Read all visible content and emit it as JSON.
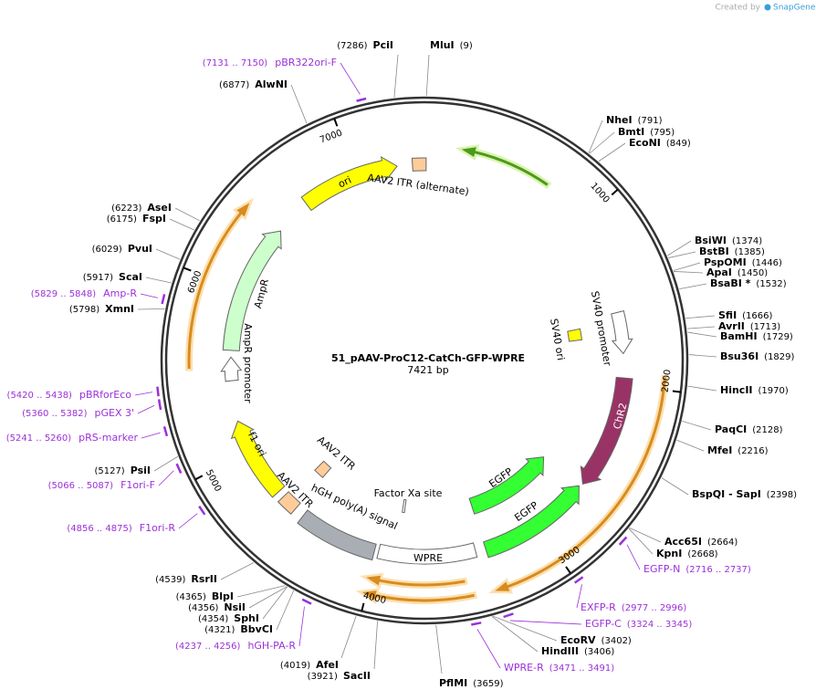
{
  "header": {
    "created_by": "Created by",
    "brand": "SnapGene"
  },
  "map": {
    "name": "51_pAAV-ProC12-CatCh-GFP-WPRE",
    "length": {
      "value": 7421,
      "label": "7421 bp"
    },
    "ruler": [
      1000,
      2000,
      3000,
      4000,
      5000,
      6000,
      7000
    ]
  },
  "enzymes": [
    {
      "name": "MluI",
      "site": {
        "value": 9,
        "label": "(9)"
      }
    },
    {
      "name": "NheI",
      "site": {
        "value": 791,
        "label": "(791)"
      }
    },
    {
      "name": "BmtI",
      "site": {
        "value": 795,
        "label": "(795)"
      }
    },
    {
      "name": "EcoNI",
      "site": {
        "value": 849,
        "label": "(849)"
      }
    },
    {
      "name": "BsiWI",
      "site": {
        "value": 1374,
        "label": "(1374)"
      }
    },
    {
      "name": "BstBI",
      "site": {
        "value": 1385,
        "label": "(1385)"
      }
    },
    {
      "name": "PspOMI",
      "site": {
        "value": 1446,
        "label": "(1446)"
      }
    },
    {
      "name": "ApaI",
      "site": {
        "value": 1450,
        "label": "(1450)"
      }
    },
    {
      "name": "BsaBI *",
      "site": {
        "value": 1532,
        "label": "(1532)"
      }
    },
    {
      "name": "SfiI",
      "site": {
        "value": 1666,
        "label": "(1666)"
      }
    },
    {
      "name": "AvrII",
      "site": {
        "value": 1713,
        "label": "(1713)"
      }
    },
    {
      "name": "BamHI",
      "site": {
        "value": 1729,
        "label": "(1729)"
      }
    },
    {
      "name": "Bsu36I",
      "site": {
        "value": 1829,
        "label": "(1829)"
      }
    },
    {
      "name": "HincII",
      "site": {
        "value": 1970,
        "label": "(1970)"
      }
    },
    {
      "name": "PaqCI",
      "site": {
        "value": 2128,
        "label": "(2128)"
      }
    },
    {
      "name": "MfeI",
      "site": {
        "value": 2216,
        "label": "(2216)"
      }
    },
    {
      "name": "BspQI - SapI",
      "site": {
        "value": 2398,
        "label": "(2398)"
      }
    },
    {
      "name": "Acc65I",
      "site": {
        "value": 2664,
        "label": "(2664)"
      }
    },
    {
      "name": "KpnI",
      "site": {
        "value": 2668,
        "label": "(2668)"
      }
    },
    {
      "name": "EcoRV",
      "site": {
        "value": 3402,
        "label": "(3402)"
      }
    },
    {
      "name": "HindIII",
      "site": {
        "value": 3406,
        "label": "(3406)"
      }
    },
    {
      "name": "PflMI",
      "site": {
        "value": 3659,
        "label": "(3659)"
      }
    },
    {
      "name": "SacII",
      "site": {
        "value": 3921,
        "label": "(3921)"
      }
    },
    {
      "name": "AfeI",
      "site": {
        "value": 4019,
        "label": "(4019)"
      }
    },
    {
      "name": "BbvCI",
      "site": {
        "value": 4321,
        "label": "(4321)"
      }
    },
    {
      "name": "SphI",
      "site": {
        "value": 4354,
        "label": "(4354)"
      }
    },
    {
      "name": "NsiI",
      "site": {
        "value": 4356,
        "label": "(4356)"
      }
    },
    {
      "name": "BlpI",
      "site": {
        "value": 4365,
        "label": "(4365)"
      }
    },
    {
      "name": "RsrII",
      "site": {
        "value": 4539,
        "label": "(4539)"
      }
    },
    {
      "name": "PsiI",
      "site": {
        "value": 5127,
        "label": "(5127)"
      }
    },
    {
      "name": "XmnI",
      "site": {
        "value": 5798,
        "label": "(5798)"
      }
    },
    {
      "name": "ScaI",
      "site": {
        "value": 5917,
        "label": "(5917)"
      }
    },
    {
      "name": "PvuI",
      "site": {
        "value": 6029,
        "label": "(6029)"
      }
    },
    {
      "name": "FspI",
      "site": {
        "value": 6175,
        "label": "(6175)"
      }
    },
    {
      "name": "AseI",
      "site": {
        "value": 6223,
        "label": "(6223)"
      }
    },
    {
      "name": "AlwNI",
      "site": {
        "value": 6877,
        "label": "(6877)"
      }
    },
    {
      "name": "PciI",
      "site": {
        "value": 7286,
        "label": "(7286)"
      }
    }
  ],
  "primers": [
    {
      "name": "EGFP-N",
      "start": 2716,
      "end": 2737,
      "label": "(2716 .. 2737)"
    },
    {
      "name": "EXFP-R",
      "start": 2977,
      "end": 2996,
      "label": "(2977 .. 2996)"
    },
    {
      "name": "EGFP-C",
      "start": 3324,
      "end": 3345,
      "label": "(3324 .. 3345)"
    },
    {
      "name": "WPRE-R",
      "start": 3471,
      "end": 3491,
      "label": "(3471 .. 3491)"
    },
    {
      "name": "hGH-PA-R",
      "start": 4237,
      "end": 4256,
      "label": "(4237 .. 4256)"
    },
    {
      "name": "F1ori-R",
      "start": 4856,
      "end": 4875,
      "label": "(4856 .. 4875)"
    },
    {
      "name": "F1ori-F",
      "start": 5066,
      "end": 5087,
      "label": "(5066 .. 5087)"
    },
    {
      "name": "pRS-marker",
      "start": 5241,
      "end": 5260,
      "label": "(5241 .. 5260)"
    },
    {
      "name": "pGEX 3'",
      "start": 5360,
      "end": 5382,
      "label": "(5360 .. 5382)"
    },
    {
      "name": "pBRforEco",
      "start": 5420,
      "end": 5438,
      "label": "(5420 .. 5438)"
    },
    {
      "name": "Amp-R",
      "start": 5829,
      "end": 5848,
      "label": "(5829 .. 5848)"
    },
    {
      "name": "pBR322ori-F",
      "start": 7131,
      "end": 7150,
      "label": "(7131 .. 7150)"
    }
  ],
  "features": [
    "ori",
    "AAV2 ITR (alternate)",
    "AmpR",
    "AmpR promoter",
    "f1 ori",
    "AAV2 ITR",
    "AAV2 ITR",
    "hGH poly(A) signal",
    "WPRE",
    "EGFP",
    "EGFP",
    "ChR2",
    "SV40 promoter",
    "SV40 ori",
    "Factor Xa site"
  ]
}
